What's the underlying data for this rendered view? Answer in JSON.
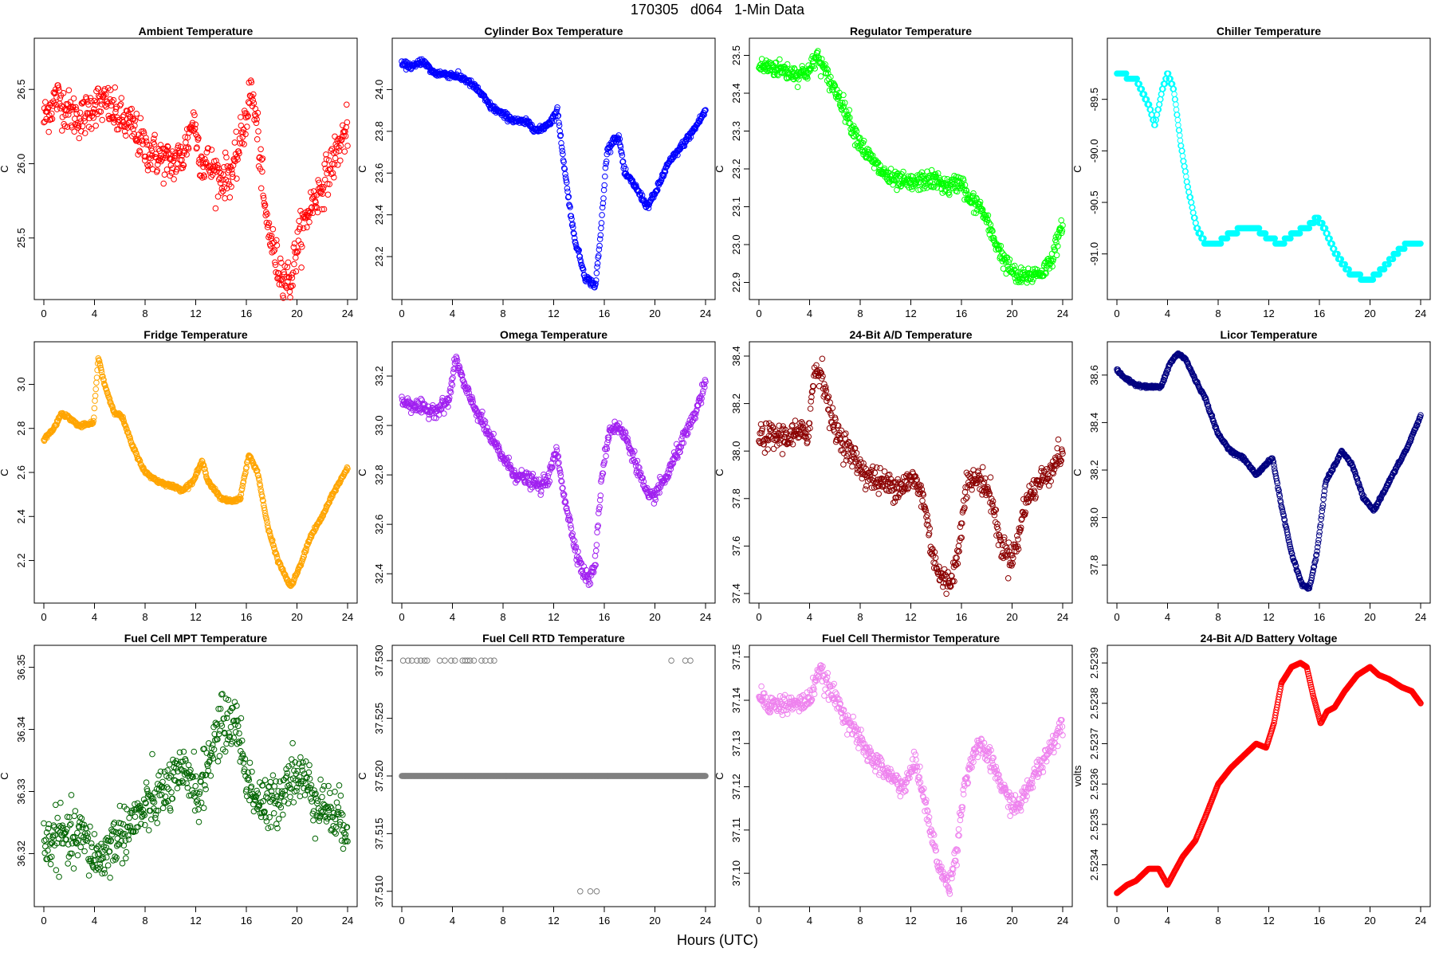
{
  "figure": {
    "title": "170305   d064   1-Min Data",
    "xlabel": "Hours (UTC)"
  },
  "chart_data": [
    {
      "type": "scatter",
      "title": "Ambient Temperature",
      "ylabel": "C",
      "color": "#ff0000",
      "xlim": [
        0,
        24
      ],
      "xticks": [
        0,
        4,
        8,
        12,
        16,
        20,
        24
      ],
      "ylim": [
        25.15,
        26.78
      ],
      "yticks": [
        25.5,
        26.0,
        26.5
      ],
      "ytick_labels": [
        "25.5",
        "26.0",
        "26.5"
      ],
      "noise": 0.07,
      "x": [
        0,
        1,
        2,
        3,
        4,
        5,
        6,
        7,
        8,
        9,
        10,
        11,
        11.8,
        12.5,
        13,
        14,
        15,
        15.8,
        16.4,
        16.9,
        17.5,
        18.5,
        19.5,
        20,
        21,
        22,
        23,
        24
      ],
      "y": [
        26.3,
        26.45,
        26.35,
        26.3,
        26.4,
        26.4,
        26.3,
        26.25,
        26.1,
        26.05,
        26.0,
        26.05,
        26.3,
        26.0,
        26.0,
        25.9,
        25.95,
        26.25,
        26.5,
        26.2,
        25.65,
        25.3,
        25.2,
        25.45,
        25.7,
        25.85,
        26.05,
        26.25
      ]
    },
    {
      "type": "scatter",
      "title": "Cylinder Box Temperature",
      "ylabel": "C",
      "color": "#0000ff",
      "xlim": [
        0,
        24
      ],
      "xticks": [
        0,
        4,
        8,
        12,
        16,
        20,
        24
      ],
      "ylim": [
        23.04,
        24.2
      ],
      "yticks": [
        23.2,
        23.4,
        23.6,
        23.8,
        24.0
      ],
      "ytick_labels": [
        "23.2",
        "23.4",
        "23.6",
        "23.8",
        "24.0"
      ],
      "noise": 0.008,
      "x": [
        0,
        1,
        1.6,
        2.5,
        4,
        5,
        6,
        7,
        8,
        9,
        10,
        10.8,
        11.8,
        12.3,
        12.9,
        13.6,
        14.5,
        15.3,
        15.7,
        16.2,
        16.8,
        17.2,
        17.6,
        18.3,
        19.4,
        20,
        21,
        22,
        23,
        24
      ],
      "y": [
        24.12,
        24.11,
        24.14,
        24.08,
        24.07,
        24.05,
        24.0,
        23.92,
        23.88,
        23.85,
        23.84,
        23.8,
        23.85,
        23.9,
        23.6,
        23.3,
        23.1,
        23.06,
        23.3,
        23.7,
        23.77,
        23.76,
        23.6,
        23.55,
        23.44,
        23.5,
        23.64,
        23.72,
        23.8,
        23.9
      ]
    },
    {
      "type": "scatter",
      "title": "Regulator Temperature",
      "ylabel": "C",
      "color": "#00ff00",
      "xlim": [
        0,
        24
      ],
      "xticks": [
        0,
        4,
        8,
        12,
        16,
        20,
        24
      ],
      "ylim": [
        22.88,
        23.52
      ],
      "yticks": [
        22.9,
        23.0,
        23.1,
        23.2,
        23.3,
        23.4,
        23.5
      ],
      "ytick_labels": [
        "22.9",
        "23.0",
        "23.1",
        "23.2",
        "23.3",
        "23.4",
        "23.5"
      ],
      "noise": 0.012,
      "x": [
        0,
        1,
        2,
        3,
        4,
        4.6,
        5.3,
        6.5,
        7.5,
        8.5,
        9.5,
        10.5,
        12,
        13,
        14,
        15,
        16,
        16.5,
        17.5,
        18.5,
        19.5,
        20.5,
        21.5,
        22.5,
        23.2,
        24
      ],
      "y": [
        23.47,
        23.47,
        23.46,
        23.45,
        23.46,
        23.5,
        23.45,
        23.38,
        23.3,
        23.24,
        23.2,
        23.17,
        23.16,
        23.17,
        23.17,
        23.15,
        23.17,
        23.12,
        23.1,
        23.02,
        22.95,
        22.91,
        22.92,
        22.93,
        22.97,
        23.05
      ]
    },
    {
      "type": "scatter",
      "title": "Chiller Temperature",
      "ylabel": "C",
      "color": "#00ffff",
      "xlim": [
        0,
        24
      ],
      "xticks": [
        0,
        4,
        8,
        12,
        16,
        20,
        24
      ],
      "ylim": [
        -91.35,
        -89.0
      ],
      "yticks": [
        -91.0,
        -90.5,
        -90.0,
        -89.5
      ],
      "ytick_labels": [
        "-91.0",
        "-90.5",
        "-90.0",
        "-89.5"
      ],
      "noise": 0.0,
      "quantum": 0.05,
      "x": [
        0,
        1.5,
        2.5,
        3,
        3.6,
        4,
        4.5,
        5,
        5.6,
        6.3,
        7,
        8,
        9,
        10,
        11,
        12,
        13,
        14,
        15,
        15.8,
        16.4,
        17.3,
        18.5,
        20,
        21,
        22,
        23,
        24
      ],
      "y": [
        -89.25,
        -89.3,
        -89.55,
        -89.75,
        -89.4,
        -89.25,
        -89.4,
        -89.9,
        -90.35,
        -90.75,
        -90.9,
        -90.9,
        -90.8,
        -90.75,
        -90.75,
        -90.85,
        -90.9,
        -90.8,
        -90.75,
        -90.65,
        -90.75,
        -91.0,
        -91.2,
        -91.25,
        -91.15,
        -91.0,
        -90.9,
        -90.9
      ]
    },
    {
      "type": "scatter",
      "title": "Fridge Temperature",
      "ylabel": "C",
      "color": "#ffa500",
      "xlim": [
        0,
        24
      ],
      "xticks": [
        0,
        4,
        8,
        12,
        16,
        20,
        24
      ],
      "ylim": [
        2.05,
        3.15
      ],
      "yticks": [
        2.2,
        2.4,
        2.6,
        2.8,
        3.0
      ],
      "ytick_labels": [
        "2.2",
        "2.4",
        "2.6",
        "2.8",
        "3.0"
      ],
      "noise": 0.004,
      "x": [
        0,
        0.8,
        1.4,
        2.2,
        2.8,
        3.6,
        3.9,
        4.3,
        4.8,
        5.5,
        6.2,
        7,
        8,
        9,
        10,
        11,
        11.8,
        12.5,
        13,
        14,
        14.8,
        15.5,
        16.2,
        16.9,
        17.7,
        18.5,
        19.5,
        20.3,
        21,
        22,
        23,
        24
      ],
      "y": [
        2.75,
        2.8,
        2.87,
        2.84,
        2.81,
        2.82,
        2.82,
        3.12,
        3.0,
        2.88,
        2.85,
        2.72,
        2.6,
        2.56,
        2.54,
        2.52,
        2.56,
        2.65,
        2.56,
        2.48,
        2.47,
        2.48,
        2.68,
        2.6,
        2.35,
        2.2,
        2.08,
        2.18,
        2.3,
        2.4,
        2.52,
        2.62
      ]
    },
    {
      "type": "scatter",
      "title": "Omega Temperature",
      "ylabel": "C",
      "color": "#a020f0",
      "xlim": [
        0,
        24
      ],
      "xticks": [
        0,
        4,
        8,
        12,
        16,
        20,
        24
      ],
      "ylim": [
        32.32,
        33.3
      ],
      "yticks": [
        32.4,
        32.6,
        32.8,
        33.0,
        33.2
      ],
      "ytick_labels": [
        "32.4",
        "32.6",
        "32.8",
        "33.0",
        "33.2"
      ],
      "noise": 0.014,
      "x": [
        0,
        1,
        2,
        3,
        3.7,
        4.3,
        5,
        6,
        7,
        8,
        9,
        10,
        11,
        11.7,
        12.2,
        12.9,
        13.5,
        14.2,
        14.8,
        15.3,
        15.8,
        16.4,
        17,
        17.7,
        18.5,
        19.5,
        20,
        21,
        22,
        23,
        24
      ],
      "y": [
        33.1,
        33.08,
        33.06,
        33.07,
        33.1,
        33.27,
        33.15,
        33.05,
        32.95,
        32.87,
        32.8,
        32.78,
        32.75,
        32.8,
        32.9,
        32.7,
        32.55,
        32.42,
        32.37,
        32.45,
        32.8,
        32.98,
        33.0,
        32.95,
        32.85,
        32.7,
        32.72,
        32.8,
        32.92,
        33.02,
        33.17
      ]
    },
    {
      "type": "scatter",
      "title": "24-Bit A/D Temperature",
      "ylabel": "C",
      "color": "#8b0000",
      "xlim": [
        0,
        24
      ],
      "xticks": [
        0,
        4,
        8,
        12,
        16,
        20,
        24
      ],
      "ylim": [
        37.4,
        38.42
      ],
      "yticks": [
        37.4,
        37.6,
        37.8,
        38.0,
        38.2,
        38.4
      ],
      "ytick_labels": [
        "37.4",
        "37.6",
        "37.8",
        "38.0",
        "38.2",
        "38.4"
      ],
      "noise": 0.028,
      "x": [
        0,
        2,
        3.9,
        4.4,
        5,
        5.4,
        5.7,
        6.5,
        7.5,
        8.5,
        9.5,
        11,
        12.3,
        13,
        13.6,
        14.3,
        15,
        15.7,
        16.3,
        17,
        17.6,
        18.4,
        19,
        19.8,
        20.4,
        21,
        22,
        23,
        24
      ],
      "y": [
        38.06,
        38.06,
        38.08,
        38.34,
        38.33,
        38.22,
        38.13,
        38.05,
        37.97,
        37.9,
        37.87,
        37.85,
        37.88,
        37.8,
        37.6,
        37.47,
        37.44,
        37.55,
        37.85,
        37.88,
        37.88,
        37.8,
        37.62,
        37.55,
        37.6,
        37.78,
        37.86,
        37.92,
        38.0
      ]
    },
    {
      "type": "scatter",
      "title": "Licor Temperature",
      "ylabel": "C",
      "color": "#000080",
      "xlim": [
        0,
        24
      ],
      "xticks": [
        0,
        4,
        8,
        12,
        16,
        20,
        24
      ],
      "ylim": [
        37.68,
        38.7
      ],
      "yticks": [
        37.8,
        38.0,
        38.2,
        38.4,
        38.6
      ],
      "ytick_labels": [
        "37.8",
        "38.0",
        "38.2",
        "38.4",
        "38.6"
      ],
      "noise": 0.003,
      "x": [
        0,
        0.8,
        1.5,
        2.5,
        3.5,
        4.2,
        4.8,
        5.4,
        6.2,
        7,
        8,
        9,
        10,
        11,
        11.7,
        12.3,
        13,
        13.8,
        14.6,
        15.2,
        15.8,
        16.5,
        17.2,
        17.8,
        18.6,
        19.5,
        20.3,
        21,
        22,
        23,
        24
      ],
      "y": [
        38.62,
        38.58,
        38.56,
        38.55,
        38.55,
        38.65,
        38.69,
        38.67,
        38.58,
        38.5,
        38.35,
        38.28,
        38.25,
        38.18,
        38.22,
        38.25,
        38.05,
        37.85,
        37.72,
        37.7,
        37.85,
        38.15,
        38.22,
        38.28,
        38.22,
        38.08,
        38.03,
        38.1,
        38.2,
        38.3,
        38.43
      ]
    },
    {
      "type": "scatter",
      "title": "Fuel Cell MPT Temperature",
      "ylabel": "C",
      "color": "#006400",
      "xlim": [
        0,
        24
      ],
      "xticks": [
        0,
        4,
        8,
        12,
        16,
        20,
        24
      ],
      "ylim": [
        36.313,
        36.352
      ],
      "yticks": [
        36.32,
        36.33,
        36.34,
        36.35
      ],
      "ytick_labels": [
        "36.32",
        "36.33",
        "36.34",
        "36.35"
      ],
      "noise": 0.0022,
      "x": [
        0,
        1,
        2,
        3,
        3.8,
        4.5,
        5.5,
        7,
        8.5,
        10,
        11.5,
        12.3,
        13,
        13.8,
        14.5,
        15.3,
        15.8,
        16.5,
        17.5,
        18.5,
        19.5,
        20.5,
        21.5,
        22.5,
        23.5,
        24
      ],
      "y": [
        36.321,
        36.323,
        36.322,
        36.323,
        36.32,
        36.319,
        36.322,
        36.325,
        36.328,
        36.331,
        36.333,
        36.329,
        36.335,
        36.34,
        36.341,
        36.341,
        36.334,
        36.33,
        36.327,
        36.329,
        36.333,
        36.332,
        36.329,
        36.327,
        36.325,
        36.325
      ]
    },
    {
      "type": "scatter",
      "title": "Fuel Cell RTD Temperature",
      "ylabel": "C",
      "color": "#808080",
      "xlim": [
        0,
        24
      ],
      "xticks": [
        0,
        4,
        8,
        12,
        16,
        20,
        24
      ],
      "ylim": [
        37.5095,
        37.5305
      ],
      "yticks": [
        37.51,
        37.515,
        37.52,
        37.525,
        37.53
      ],
      "ytick_labels": [
        "37.510",
        "37.515",
        "37.520",
        "37.525",
        "37.530"
      ],
      "noise": 0.0,
      "x": [
        0,
        24
      ],
      "y": [
        37.52,
        37.52
      ],
      "outliers_x": [
        0.1,
        0.5,
        0.8,
        1.2,
        1.5,
        1.8,
        2.0,
        3.0,
        3.4,
        3.9,
        4.2,
        4.8,
        5.0,
        5.2,
        5.4,
        5.7,
        6.3,
        6.6,
        7.0,
        7.3,
        21.3,
        22.4,
        22.8,
        14.1,
        14.9,
        15.4
      ],
      "outliers_y": [
        37.53,
        37.53,
        37.53,
        37.53,
        37.53,
        37.53,
        37.53,
        37.53,
        37.53,
        37.53,
        37.53,
        37.53,
        37.53,
        37.53,
        37.53,
        37.53,
        37.53,
        37.53,
        37.53,
        37.53,
        37.53,
        37.53,
        37.53,
        37.51,
        37.51,
        37.51
      ]
    },
    {
      "type": "scatter",
      "title": "Fuel Cell Thermistor Temperature",
      "ylabel": "C",
      "color": "#ee82ee",
      "xlim": [
        0,
        24
      ],
      "xticks": [
        0,
        4,
        8,
        12,
        16,
        20,
        24
      ],
      "ylim": [
        37.0945,
        37.1505
      ],
      "yticks": [
        37.1,
        37.11,
        37.12,
        37.13,
        37.14,
        37.15
      ],
      "ytick_labels": [
        "37.10",
        "37.11",
        "37.12",
        "37.13",
        "37.14",
        "37.15"
      ],
      "noise": 0.0012,
      "x": [
        0,
        1,
        2,
        3,
        4,
        4.7,
        5.5,
        6.5,
        7.5,
        8.5,
        9.5,
        10.5,
        11.5,
        12.4,
        13,
        13.7,
        14.4,
        15,
        15.6,
        16.2,
        17,
        17.7,
        18.5,
        19.5,
        20.3,
        21,
        22,
        23,
        24
      ],
      "y": [
        37.141,
        37.139,
        37.139,
        37.139,
        37.14,
        37.147,
        37.143,
        37.138,
        37.133,
        37.128,
        37.125,
        37.122,
        37.12,
        37.126,
        37.118,
        37.108,
        37.1,
        37.097,
        37.105,
        37.12,
        37.128,
        37.129,
        37.125,
        37.118,
        37.115,
        37.118,
        37.124,
        37.129,
        37.135
      ]
    },
    {
      "type": "scatter",
      "title": "24-Bit A/D Battery Voltage",
      "ylabel": "volts",
      "color": "#ff0000",
      "xlim": [
        0,
        24
      ],
      "xticks": [
        0,
        4,
        8,
        12,
        16,
        20,
        24
      ],
      "ylim": [
        2.52332,
        2.52392
      ],
      "yticks": [
        2.5234,
        2.5235,
        2.5236,
        2.5237,
        2.5238,
        2.5239
      ],
      "ytick_labels": [
        "2.5234",
        "2.5235",
        "2.5236",
        "2.5237",
        "2.5238",
        "2.5239"
      ],
      "noise": 0.0,
      "x": [
        0,
        0.8,
        1.5,
        2.5,
        3.3,
        4,
        4.5,
        5.2,
        6.2,
        7,
        8,
        9,
        10,
        11,
        11.8,
        12.4,
        13,
        13.8,
        14.5,
        15,
        15.5,
        16.1,
        16.6,
        17.2,
        18,
        19,
        20,
        20.7,
        21.5,
        22.5,
        23.3,
        24
      ],
      "y": [
        2.52333,
        2.52335,
        2.52336,
        2.52339,
        2.52339,
        2.52335,
        2.52338,
        2.52342,
        2.52346,
        2.52352,
        2.5236,
        2.52364,
        2.52367,
        2.5237,
        2.52369,
        2.52375,
        2.52385,
        2.52389,
        2.5239,
        2.52389,
        2.52382,
        2.52375,
        2.52378,
        2.52379,
        2.52383,
        2.52387,
        2.52389,
        2.52387,
        2.52386,
        2.52384,
        2.52383,
        2.5238
      ]
    }
  ]
}
